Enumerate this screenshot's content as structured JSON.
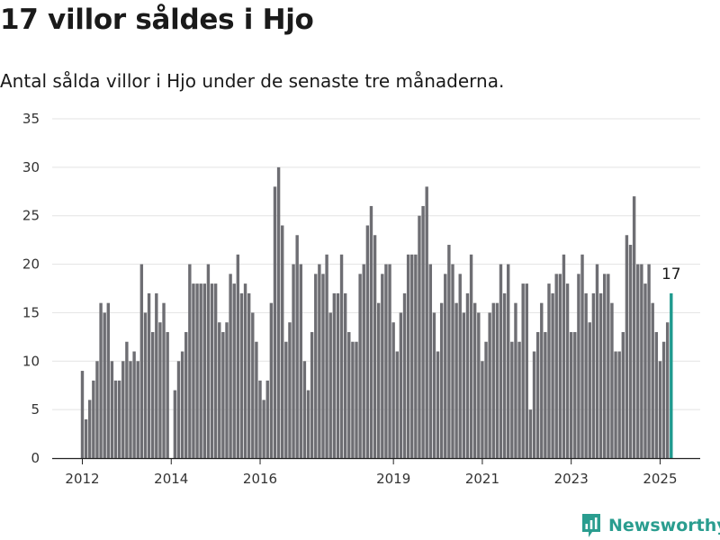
{
  "header": {
    "title": "17 villor såldes i Hjo",
    "subtitle": "Antal sålda villor i Hjo under de senaste tre månaderna."
  },
  "brand": {
    "name": "Newsworthy"
  },
  "colors": {
    "bar": "#6e6e73",
    "highlight": "#1f9a8e",
    "grid": "#e3e3e3",
    "brand": "#2a9d8f"
  },
  "chart_data": {
    "type": "bar",
    "title": "17 villor såldes i Hjo",
    "subtitle": "Antal sålda villor i Hjo under de senaste tre månaderna.",
    "xlabel": "",
    "ylabel": "",
    "ylim": [
      0,
      35
    ],
    "yticks": [
      0,
      5,
      10,
      15,
      20,
      25,
      30,
      35
    ],
    "grid": true,
    "x_start": "2012-01",
    "x_end": "2025-04",
    "xtick_labels": [
      "2012",
      "2014",
      "2016",
      "2019",
      "2021",
      "2023",
      "2025"
    ],
    "xtick_months": [
      "2012-01",
      "2014-01",
      "2016-01",
      "2019-01",
      "2021-01",
      "2023-01",
      "2025-01"
    ],
    "values": [
      9,
      4,
      6,
      8,
      10,
      16,
      15,
      16,
      10,
      8,
      8,
      10,
      12,
      10,
      11,
      10,
      20,
      15,
      17,
      13,
      17,
      14,
      16,
      13,
      0,
      7,
      10,
      11,
      13,
      20,
      18,
      18,
      18,
      18,
      20,
      18,
      18,
      14,
      13,
      14,
      19,
      18,
      21,
      17,
      18,
      17,
      15,
      12,
      8,
      6,
      8,
      16,
      28,
      30,
      24,
      12,
      14,
      20,
      23,
      20,
      10,
      7,
      13,
      19,
      20,
      19,
      21,
      15,
      17,
      17,
      21,
      17,
      13,
      12,
      12,
      19,
      20,
      24,
      26,
      23,
      16,
      19,
      20,
      20,
      14,
      11,
      15,
      17,
      21,
      21,
      21,
      25,
      26,
      28,
      20,
      15,
      11,
      16,
      19,
      22,
      20,
      16,
      19,
      15,
      17,
      21,
      16,
      15,
      10,
      12,
      15,
      16,
      16,
      20,
      17,
      20,
      12,
      16,
      12,
      18,
      18,
      5,
      11,
      13,
      16,
      13,
      18,
      17,
      19,
      19,
      21,
      18,
      13,
      13,
      19,
      21,
      17,
      14,
      17,
      20,
      17,
      19,
      19,
      16,
      11,
      11,
      13,
      23,
      22,
      27,
      20,
      20,
      18,
      20,
      16,
      13,
      10,
      12,
      14,
      17
    ],
    "highlight_index": 159,
    "annotation": "17"
  }
}
